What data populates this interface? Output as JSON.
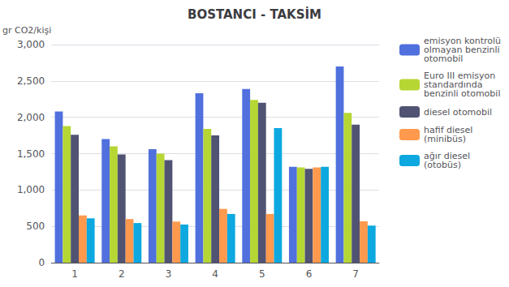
{
  "chart_data": {
    "type": "bar",
    "title": "BOSTANCI - TAKSİM",
    "ylabel": "gr CO2/kişi",
    "categories": [
      "1",
      "2",
      "3",
      "4",
      "5",
      "6",
      "7"
    ],
    "series": [
      {
        "name": "emisyon kontrolü\nolmayan benzinli\notomobil",
        "values": [
          2080,
          1700,
          1560,
          2330,
          2390,
          1320,
          2700
        ]
      },
      {
        "name": "Euro III emisyon\nstandardında\nbenzinli otomobil",
        "values": [
          1880,
          1600,
          1500,
          1840,
          2240,
          1310,
          2060
        ]
      },
      {
        "name": "diesel otomobil",
        "values": [
          1760,
          1490,
          1410,
          1750,
          2200,
          1290,
          1900
        ]
      },
      {
        "name": "hafif diesel\n(minibüs)",
        "values": [
          650,
          600,
          565,
          740,
          670,
          1310,
          570
        ]
      },
      {
        "name": "ağır diesel\n(otobüs)",
        "values": [
          610,
          545,
          525,
          670,
          1850,
          1320,
          510
        ]
      }
    ],
    "ylim": [
      0,
      3000
    ],
    "yticks": [
      0,
      500,
      {
        "value": 1000,
        "label": "1,000"
      },
      {
        "value": 1500,
        "label": "1,500"
      },
      {
        "value": 2000,
        "label": "2,000"
      },
      {
        "value": 2500,
        "label": "2,500"
      },
      {
        "value": 3000,
        "label": "3,000"
      }
    ],
    "grid": true,
    "legend": "upper right"
  }
}
